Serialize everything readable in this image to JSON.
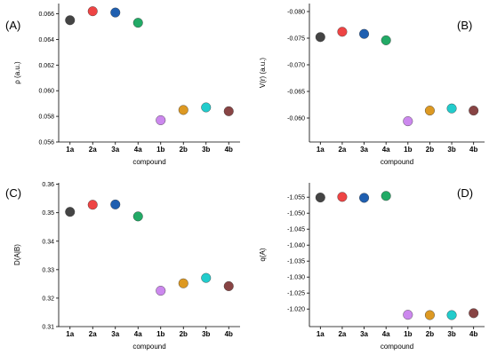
{
  "colors": [
    "#444444",
    "#ee4444",
    "#1f5fb0",
    "#22aa66",
    "#cc88ee",
    "#dd9922",
    "#22cccc",
    "#884444"
  ],
  "chart_data": [
    {
      "type": "scatter",
      "panel": "(A)",
      "categories": [
        "1a",
        "2a",
        "3a",
        "4a",
        "1b",
        "2b",
        "3b",
        "4b"
      ],
      "values": [
        0.0655,
        0.0662,
        0.0661,
        0.0653,
        0.0577,
        0.0585,
        0.0587,
        0.0584
      ],
      "xlabel": "compound",
      "ylabel": "ρ (a.u.)",
      "ylim": [
        0.056,
        0.0668
      ],
      "ytick_values": [
        0.056,
        0.058,
        0.06,
        0.062,
        0.064,
        0.066
      ],
      "yticks": [
        "0.056",
        "0.058",
        "0.060",
        "0.062",
        "0.064",
        "0.066"
      ],
      "reversed": false
    },
    {
      "type": "scatter",
      "panel": "(B)",
      "categories": [
        "1a",
        "2a",
        "3a",
        "4a",
        "1b",
        "2b",
        "3b",
        "4b"
      ],
      "values": [
        -0.0752,
        -0.0762,
        -0.0758,
        -0.0746,
        -0.0594,
        -0.0614,
        -0.0618,
        -0.0614
      ],
      "xlabel": "compound",
      "ylabel": "V(r) (a.u.)",
      "ylim": [
        -0.0815,
        -0.0555
      ],
      "ytick_values": [
        -0.08,
        -0.075,
        -0.07,
        -0.065,
        -0.06
      ],
      "yticks": [
        "-0.080",
        "-0.075",
        "-0.070",
        "-0.065",
        "-0.060"
      ],
      "reversed": true
    },
    {
      "type": "scatter",
      "panel": "(C)",
      "categories": [
        "1a",
        "2a",
        "3a",
        "4a",
        "1b",
        "2b",
        "3b",
        "4b"
      ],
      "values": [
        0.3503,
        0.3528,
        0.3529,
        0.3487,
        0.3226,
        0.3252,
        0.3271,
        0.3242
      ],
      "xlabel": "compound",
      "ylabel": "D(A|B)",
      "ylim": [
        0.31,
        0.3605
      ],
      "ytick_values": [
        0.31,
        0.32,
        0.33,
        0.34,
        0.35,
        0.36
      ],
      "yticks": [
        "0.31",
        "0.32",
        "0.33",
        "0.34",
        "0.35",
        "0.36"
      ],
      "reversed": false
    },
    {
      "type": "scatter",
      "panel": "(D)",
      "categories": [
        "1a",
        "2a",
        "3a",
        "4a",
        "1b",
        "2b",
        "3b",
        "4b"
      ],
      "values": [
        -1.0549,
        -1.0551,
        -1.0548,
        -1.0554,
        -1.0182,
        -1.0181,
        -1.0181,
        -1.0187
      ],
      "xlabel": "compound",
      "ylabel": "q(A)",
      "ylim": [
        -1.0595,
        -1.0145
      ],
      "ytick_values": [
        -1.055,
        -1.05,
        -1.045,
        -1.04,
        -1.035,
        -1.03,
        -1.025,
        -1.02
      ],
      "yticks": [
        "-1.055",
        "-1.050",
        "-1.045",
        "-1.040",
        "-1.035",
        "-1.030",
        "-1.025",
        "-1.020"
      ],
      "reversed": true
    }
  ]
}
